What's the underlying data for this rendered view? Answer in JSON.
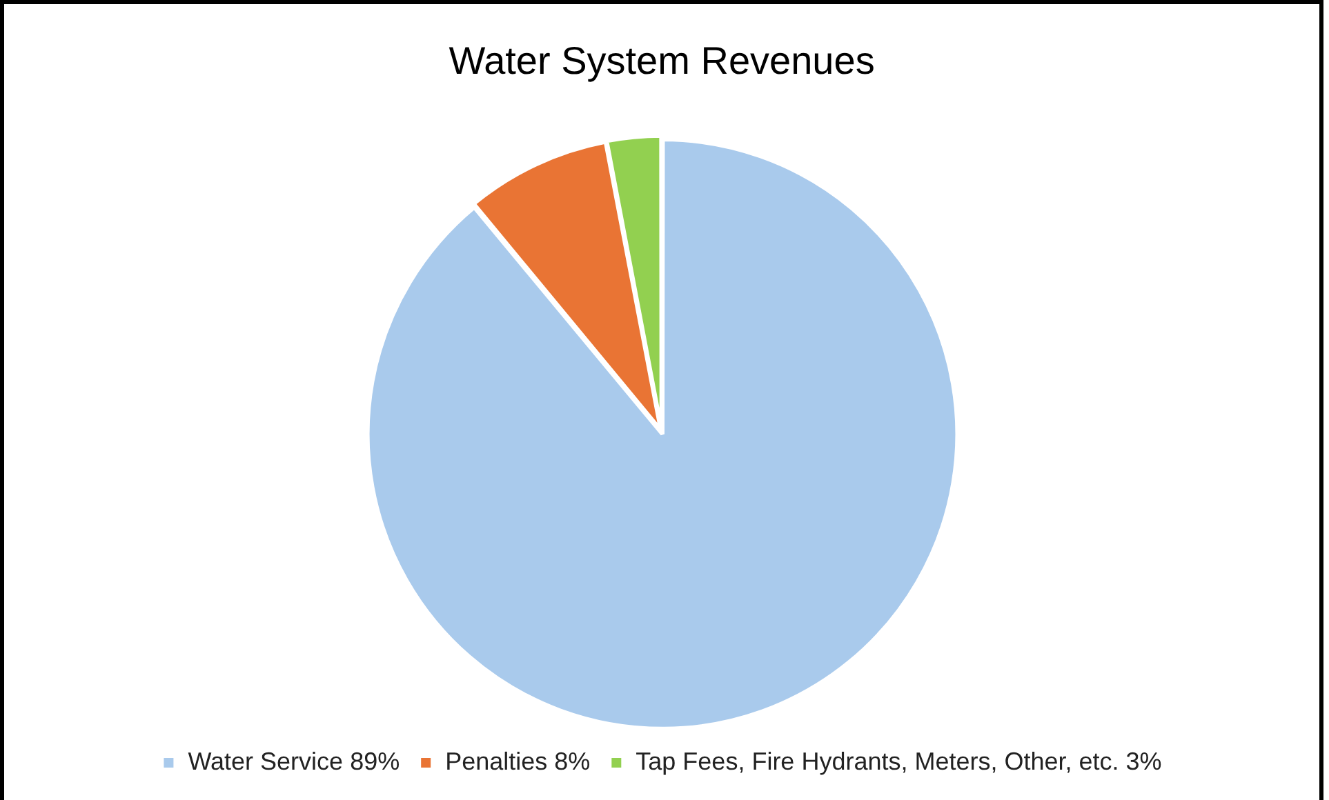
{
  "chart_data": {
    "type": "pie",
    "title": "Water System Revenues",
    "categories": [
      "Water Service 89%",
      "Penalties 8%",
      "Tap Fees, Fire Hydrants, Meters, Other, etc. 3%"
    ],
    "values": [
      89,
      8,
      3
    ],
    "colors": [
      "#a9caec",
      "#e97434",
      "#92d050"
    ],
    "legend": "bottom"
  }
}
